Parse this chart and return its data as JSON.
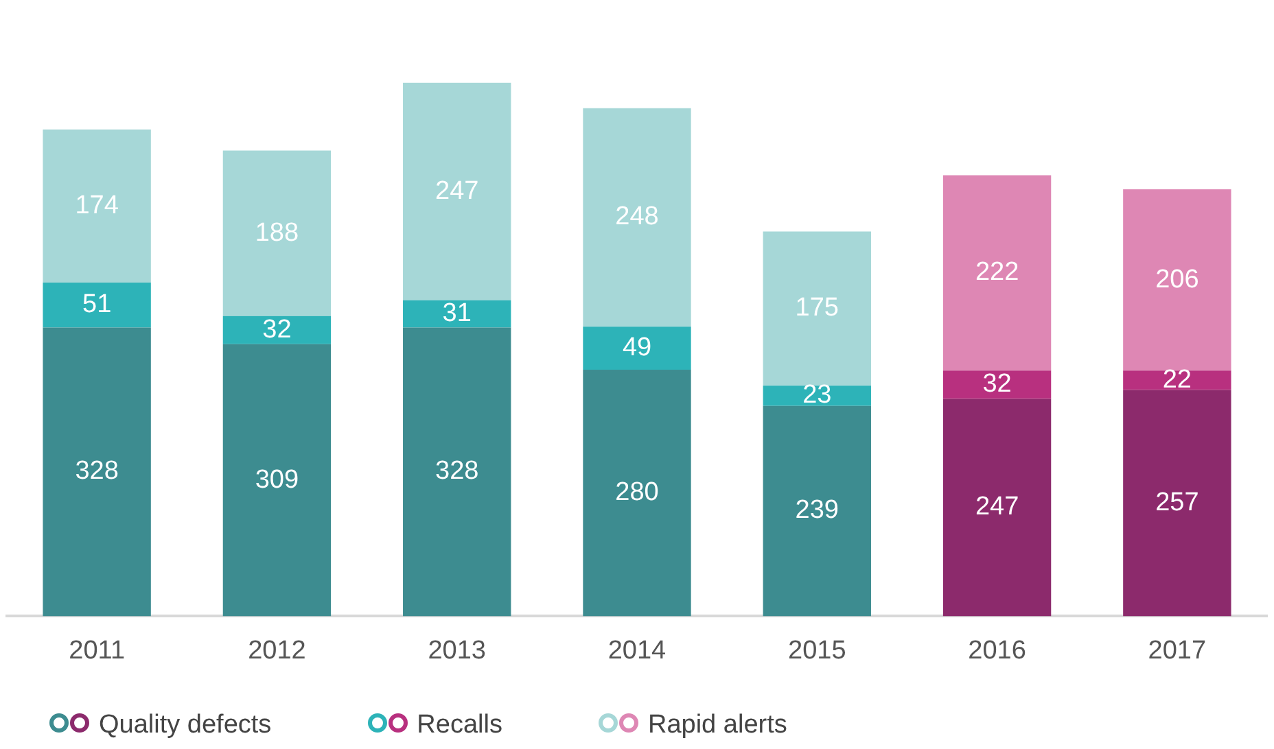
{
  "chart_data": {
    "type": "bar",
    "stacked": true,
    "categories": [
      "2011",
      "2012",
      "2013",
      "2014",
      "2015",
      "2016",
      "2017"
    ],
    "series": [
      {
        "name": "Quality defects",
        "colors": [
          "#3d8c90",
          "#3d8c90",
          "#3d8c90",
          "#3d8c90",
          "#3d8c90",
          "#8c2a6c",
          "#8c2a6c"
        ],
        "values": [
          328,
          309,
          328,
          280,
          239,
          247,
          257
        ]
      },
      {
        "name": "Recalls",
        "colors": [
          "#2db3b8",
          "#2db3b8",
          "#2db3b8",
          "#2db3b8",
          "#2db3b8",
          "#b8307f",
          "#b8307f"
        ],
        "values": [
          51,
          32,
          31,
          49,
          23,
          32,
          22
        ]
      },
      {
        "name": "Rapid alerts",
        "colors": [
          "#a6d7d7",
          "#a6d7d7",
          "#a6d7d7",
          "#a6d7d7",
          "#a6d7d7",
          "#de87b4",
          "#de87b4"
        ],
        "values": [
          174,
          188,
          247,
          248,
          175,
          222,
          206
        ]
      }
    ],
    "legend": "bottom left",
    "data_labels": true
  }
}
